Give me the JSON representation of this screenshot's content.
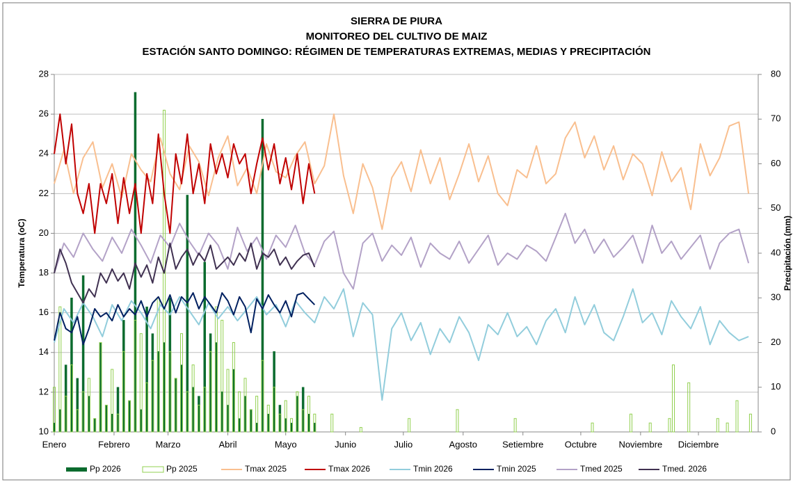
{
  "chart_data": {
    "type": "line",
    "title": [
      "SIERRA DE PIURA",
      "MONITOREO DEL CULTIVO DE MAIZ",
      "ESTACIÓN SANTO DOMINGO: RÉGIMEN DE TEMPERATURAS EXTREMAS, MEDIAS Y PRECIPITACIÓN"
    ],
    "y_label": "Temperatura (oC)",
    "y2_label": "Precipitación (mm)",
    "xlim": [
      1,
      366
    ],
    "xticks": [
      {
        "value": 1,
        "label": "Enero"
      },
      {
        "value": 32,
        "label": "Febrero"
      },
      {
        "value": 60,
        "label": "Marzo"
      },
      {
        "value": 91,
        "label": "Abril"
      },
      {
        "value": 121,
        "label": "Mayo"
      },
      {
        "value": 152,
        "label": "Junio"
      },
      {
        "value": 182,
        "label": "Julio"
      },
      {
        "value": 213,
        "label": "Agosto"
      },
      {
        "value": 244,
        "label": "Setiembre"
      },
      {
        "value": 274,
        "label": "Octubre"
      },
      {
        "value": 305,
        "label": "Noviembre"
      },
      {
        "value": 335,
        "label": "Diciembre"
      }
    ],
    "ylim": [
      10,
      28
    ],
    "yticks": [
      10,
      12,
      14,
      16,
      18,
      20,
      22,
      24,
      26,
      28
    ],
    "y2lim": [
      0,
      80
    ],
    "y2ticks": [
      0,
      10,
      20,
      30,
      40,
      50,
      60,
      70,
      80
    ],
    "grid": true,
    "series": [
      {
        "name": "Pp 2026",
        "type": "bar",
        "axis": "y2",
        "color": "#0b6b2e",
        "x": [
          1,
          4,
          7,
          10,
          13,
          16,
          19,
          22,
          25,
          28,
          31,
          34,
          37,
          40,
          43,
          46,
          49,
          52,
          55,
          58,
          61,
          64,
          67,
          70,
          73,
          76,
          79,
          82,
          85,
          88,
          91,
          94,
          97,
          100,
          103,
          106,
          109,
          112,
          115,
          118,
          121,
          124,
          127,
          130,
          133,
          136
        ],
        "values": [
          2,
          5,
          15,
          30,
          12,
          35,
          8,
          3,
          20,
          6,
          4,
          10,
          25,
          7,
          76,
          5,
          28,
          22,
          18,
          20,
          30,
          12,
          15,
          53,
          10,
          8,
          38,
          22,
          20,
          9,
          6,
          14,
          3,
          8,
          5,
          2,
          70,
          4,
          18,
          6,
          3,
          2,
          8,
          10,
          4,
          2
        ]
      },
      {
        "name": "Pp 2025",
        "type": "bar",
        "axis": "y2",
        "color": "#92d050",
        "x": [
          1,
          4,
          7,
          10,
          13,
          16,
          19,
          22,
          25,
          28,
          31,
          34,
          37,
          40,
          43,
          46,
          49,
          52,
          55,
          58,
          61,
          64,
          67,
          70,
          73,
          76,
          79,
          82,
          85,
          88,
          91,
          94,
          97,
          100,
          103,
          106,
          109,
          112,
          115,
          118,
          121,
          124,
          127,
          130,
          133,
          136,
          145,
          160,
          185,
          210,
          240,
          280,
          300,
          310,
          320,
          322,
          330,
          345,
          350,
          355,
          362
        ],
        "values": [
          10,
          28,
          8,
          15,
          5,
          9,
          12,
          3,
          20,
          6,
          14,
          4,
          18,
          7,
          25,
          22,
          11,
          16,
          30,
          72,
          18,
          12,
          22,
          9,
          15,
          6,
          10,
          18,
          28,
          25,
          14,
          20,
          9,
          12,
          5,
          8,
          16,
          6,
          10,
          4,
          7,
          3,
          9,
          5,
          8,
          4,
          4,
          1,
          3,
          5,
          3,
          2,
          4,
          2,
          3,
          15,
          11,
          3,
          2,
          7,
          4
        ]
      },
      {
        "name": "Tmax 2025",
        "type": "line",
        "color": "#f9bf8f",
        "x": [
          1,
          6,
          11,
          16,
          21,
          26,
          31,
          36,
          41,
          46,
          51,
          56,
          61,
          66,
          71,
          76,
          81,
          86,
          91,
          96,
          101,
          106,
          111,
          116,
          121,
          126,
          131,
          136,
          141,
          146,
          151,
          156,
          161,
          166,
          171,
          176,
          181,
          186,
          191,
          196,
          201,
          206,
          211,
          216,
          221,
          226,
          231,
          236,
          241,
          246,
          251,
          256,
          261,
          266,
          271,
          276,
          281,
          286,
          291,
          296,
          301,
          306,
          311,
          316,
          321,
          326,
          331,
          336,
          341,
          346,
          351,
          356,
          361
        ],
        "values": [
          22.5,
          24.2,
          22.0,
          23.8,
          24.6,
          22.3,
          23.5,
          21.8,
          24.0,
          23.2,
          22.6,
          24.8,
          23.0,
          22.2,
          24.4,
          23.6,
          21.9,
          23.8,
          24.9,
          22.4,
          23.3,
          22.0,
          24.5,
          23.1,
          22.8,
          23.9,
          24.6,
          22.5,
          23.4,
          26.0,
          22.9,
          21.0,
          23.5,
          22.3,
          20.2,
          22.8,
          23.6,
          22.1,
          24.2,
          22.5,
          23.8,
          21.7,
          23.0,
          24.5,
          22.6,
          23.9,
          22.0,
          21.4,
          23.2,
          22.8,
          24.4,
          22.5,
          23.0,
          24.8,
          25.6,
          23.8,
          24.9,
          23.2,
          24.4,
          22.7,
          24.0,
          23.5,
          21.9,
          24.1,
          22.6,
          23.3,
          21.2,
          24.5,
          22.9,
          23.8,
          25.4,
          25.6,
          22.0
        ]
      },
      {
        "name": "Tmax 2026",
        "type": "line",
        "color": "#c00000",
        "x": [
          1,
          4,
          7,
          10,
          13,
          16,
          19,
          22,
          25,
          28,
          31,
          34,
          37,
          40,
          43,
          46,
          49,
          52,
          55,
          58,
          61,
          64,
          67,
          70,
          73,
          76,
          79,
          82,
          85,
          88,
          91,
          94,
          97,
          100,
          103,
          106,
          109,
          112,
          115,
          118,
          121,
          124,
          127,
          130,
          133,
          136
        ],
        "values": [
          24.0,
          26.0,
          23.5,
          25.5,
          22.0,
          21.0,
          22.5,
          20.0,
          22.5,
          21.5,
          23.0,
          20.5,
          22.8,
          21.0,
          22.5,
          20.0,
          23.0,
          21.5,
          25.0,
          22.0,
          20.0,
          24.0,
          22.5,
          25.0,
          22.0,
          23.5,
          21.5,
          24.5,
          23.0,
          24.0,
          22.8,
          24.5,
          23.5,
          24.0,
          22.0,
          23.5,
          24.8,
          23.2,
          24.5,
          22.5,
          23.8,
          22.2,
          24.0,
          21.5,
          23.5,
          22.0
        ]
      },
      {
        "name": "Tmin 2026",
        "type": "line",
        "color": "#92cddc",
        "x": [
          1,
          6,
          11,
          16,
          21,
          26,
          31,
          36,
          41,
          46,
          51,
          56,
          61,
          66,
          71,
          76,
          81,
          86,
          91,
          96,
          101,
          106,
          111,
          116,
          121,
          126,
          131,
          136,
          141,
          146,
          151,
          156,
          161,
          166,
          171,
          176,
          181,
          186,
          191,
          196,
          201,
          206,
          211,
          216,
          221,
          226,
          231,
          236,
          241,
          246,
          251,
          256,
          261,
          266,
          271,
          276,
          281,
          286,
          291,
          296,
          301,
          306,
          311,
          316,
          321,
          326,
          331,
          336,
          341,
          346,
          351,
          356,
          361
        ],
        "values": [
          14.5,
          16.2,
          15.5,
          16.5,
          15.8,
          14.8,
          16.4,
          15.6,
          16.6,
          16.0,
          15.2,
          16.4,
          15.9,
          16.8,
          16.1,
          15.4,
          16.5,
          15.7,
          16.3,
          15.6,
          16.2,
          16.8,
          15.9,
          16.4,
          15.3,
          16.6,
          16.0,
          15.5,
          16.8,
          16.2,
          17.2,
          14.8,
          16.5,
          15.9,
          11.6,
          15.2,
          16.0,
          14.6,
          15.5,
          13.9,
          15.2,
          14.5,
          15.8,
          15.0,
          13.6,
          15.4,
          14.9,
          16.0,
          14.8,
          15.3,
          14.4,
          15.6,
          16.2,
          15.0,
          16.8,
          15.4,
          16.4,
          15.0,
          14.6,
          15.8,
          17.2,
          15.5,
          16.0,
          14.9,
          16.6,
          15.8,
          15.2,
          16.3,
          14.4,
          15.6,
          15.0,
          14.6,
          14.8
        ]
      },
      {
        "name": "Tmin 2025",
        "type": "line",
        "color": "#002060",
        "x": [
          1,
          4,
          7,
          10,
          13,
          16,
          19,
          22,
          25,
          28,
          31,
          34,
          37,
          40,
          43,
          46,
          49,
          52,
          55,
          58,
          61,
          64,
          67,
          70,
          73,
          76,
          79,
          82,
          85,
          88,
          91,
          94,
          97,
          100,
          103,
          106,
          109,
          112,
          115,
          118,
          121,
          124,
          127,
          130,
          133,
          136
        ],
        "values": [
          14.6,
          16.0,
          15.2,
          15.0,
          15.8,
          14.4,
          15.2,
          16.2,
          15.8,
          16.0,
          15.6,
          16.4,
          15.8,
          16.2,
          15.9,
          16.6,
          15.8,
          16.5,
          16.8,
          16.2,
          16.9,
          16.0,
          16.8,
          16.5,
          17.0,
          16.2,
          16.8,
          16.4,
          16.0,
          17.0,
          16.6,
          15.9,
          16.8,
          16.3,
          15.0,
          16.7,
          16.2,
          16.9,
          16.4,
          16.0,
          16.6,
          15.8,
          16.9,
          17.0,
          16.7,
          16.4
        ]
      },
      {
        "name": "Tmed 2025",
        "type": "line",
        "color": "#b3a2c7",
        "x": [
          1,
          6,
          11,
          16,
          21,
          26,
          31,
          36,
          41,
          46,
          51,
          56,
          61,
          66,
          71,
          76,
          81,
          86,
          91,
          96,
          101,
          106,
          111,
          116,
          121,
          126,
          131,
          136,
          141,
          146,
          151,
          156,
          161,
          166,
          171,
          176,
          181,
          186,
          191,
          196,
          201,
          206,
          211,
          216,
          221,
          226,
          231,
          236,
          241,
          246,
          251,
          256,
          261,
          266,
          271,
          276,
          281,
          286,
          291,
          296,
          301,
          306,
          311,
          316,
          321,
          326,
          331,
          336,
          341,
          346,
          351,
          356,
          361
        ],
        "values": [
          18.0,
          19.5,
          18.8,
          20.0,
          19.2,
          18.6,
          19.8,
          19.0,
          20.2,
          19.4,
          18.5,
          19.9,
          19.3,
          20.5,
          19.6,
          18.9,
          20.0,
          19.4,
          18.2,
          20.3,
          19.1,
          19.8,
          18.7,
          19.9,
          19.3,
          20.4,
          19.0,
          18.4,
          19.6,
          20.1,
          18.0,
          17.2,
          19.5,
          20.0,
          18.6,
          19.4,
          18.9,
          19.8,
          18.3,
          19.5,
          19.0,
          18.7,
          19.6,
          18.5,
          19.2,
          19.9,
          18.4,
          19.0,
          18.7,
          19.4,
          19.1,
          18.6,
          19.8,
          21.0,
          19.5,
          20.2,
          19.0,
          19.7,
          18.8,
          19.3,
          19.9,
          18.5,
          20.4,
          19.0,
          19.6,
          18.7,
          19.3,
          19.9,
          18.2,
          19.5,
          20.0,
          20.2,
          18.5
        ]
      },
      {
        "name": "Tmed. 2026",
        "type": "line",
        "color": "#403151",
        "x": [
          1,
          4,
          7,
          10,
          13,
          16,
          19,
          22,
          25,
          28,
          31,
          34,
          37,
          40,
          43,
          46,
          49,
          52,
          55,
          58,
          61,
          64,
          67,
          70,
          73,
          76,
          79,
          82,
          85,
          88,
          91,
          94,
          97,
          100,
          103,
          106,
          109,
          112,
          115,
          118,
          121,
          124,
          127,
          130,
          133,
          136
        ],
        "values": [
          18.0,
          19.2,
          18.5,
          17.5,
          17.0,
          16.5,
          17.2,
          16.8,
          18.0,
          17.5,
          18.2,
          17.6,
          18.0,
          17.2,
          18.5,
          17.8,
          18.4,
          17.5,
          18.8,
          18.0,
          19.5,
          18.2,
          18.8,
          19.2,
          18.4,
          19.0,
          18.6,
          19.4,
          18.2,
          18.5,
          18.8,
          18.4,
          19.0,
          18.6,
          19.5,
          18.2,
          19.0,
          18.8,
          19.2,
          18.4,
          18.8,
          18.2,
          18.6,
          18.9,
          19.0,
          18.3
        ]
      }
    ]
  }
}
